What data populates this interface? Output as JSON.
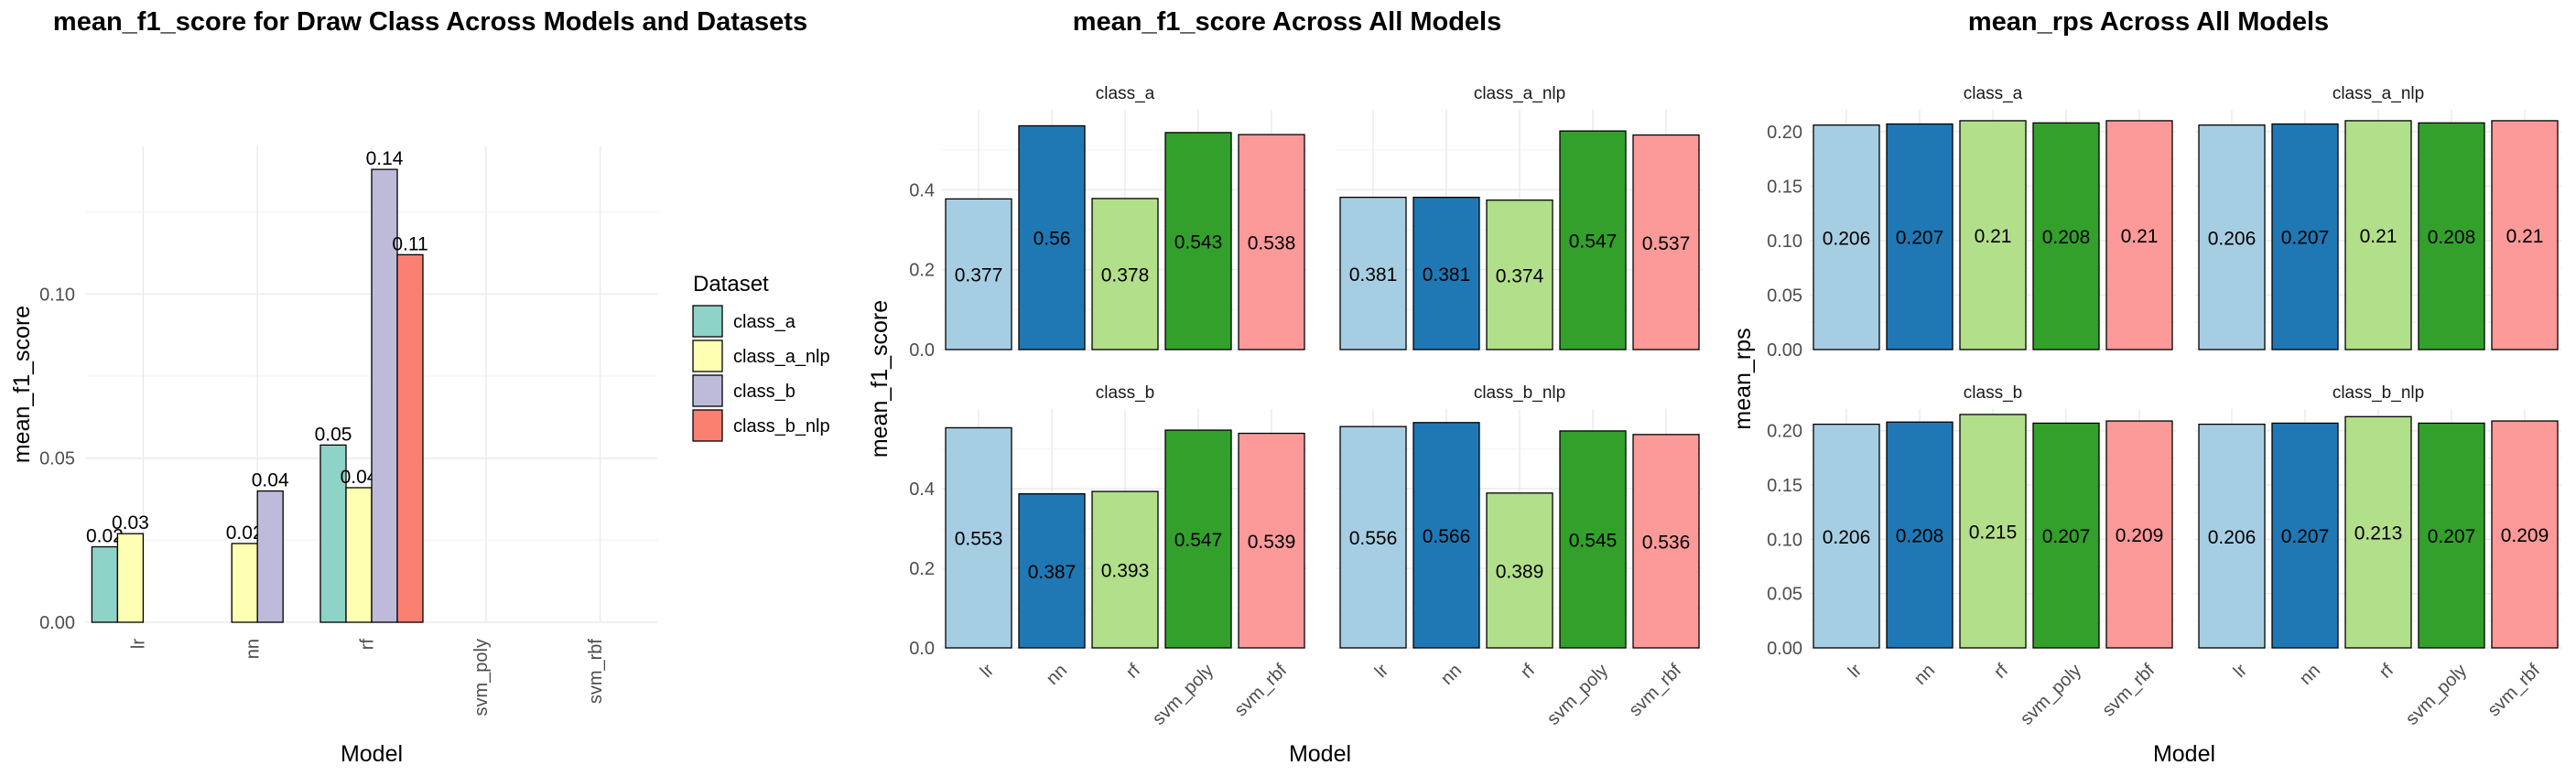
{
  "chart_data": [
    {
      "type": "bar",
      "title": "mean_f1_score for Draw Class Across Models and Datasets",
      "xlabel": "Model",
      "ylabel": "mean_f1_score",
      "categories": [
        "lr",
        "nn",
        "rf",
        "svm_poly",
        "svm_rbf"
      ],
      "yticks": [
        "0.00",
        "0.05",
        "0.10"
      ],
      "ylim": [
        0,
        0.145
      ],
      "legend_title": "Dataset",
      "legend_position": "right",
      "series": [
        {
          "name": "class_a",
          "color": "#8DD3C7",
          "values": [
            0.023,
            null,
            0.054,
            null,
            null
          ],
          "labels": [
            "0.02",
            null,
            "0.05",
            null,
            null
          ]
        },
        {
          "name": "class_a_nlp",
          "color": "#FFFFB3",
          "values": [
            0.027,
            0.024,
            0.041,
            null,
            null
          ],
          "labels": [
            "0.03",
            "0.02",
            "0.04",
            null,
            null
          ]
        },
        {
          "name": "class_b",
          "color": "#BEBADA",
          "values": [
            null,
            0.04,
            0.138,
            null,
            null
          ],
          "labels": [
            null,
            "0.04",
            "0.14",
            null,
            null
          ]
        },
        {
          "name": "class_b_nlp",
          "color": "#FB8072",
          "values": [
            null,
            null,
            0.112,
            null,
            null
          ],
          "labels": [
            null,
            null,
            "0.11",
            null,
            null
          ]
        }
      ]
    },
    {
      "type": "bar",
      "title": "mean_f1_score Across All Models",
      "xlabel": "Model",
      "ylabel": "mean_f1_score",
      "categories": [
        "lr",
        "nn",
        "rf",
        "svm_poly",
        "svm_rbf"
      ],
      "colors": [
        "#A6CEE3",
        "#1F78B4",
        "#B2DF8A",
        "#33A02C",
        "#FB9A99"
      ],
      "yticks": [
        "0.0",
        "0.2",
        "0.4"
      ],
      "ylim": [
        0,
        0.6
      ],
      "facets": [
        {
          "name": "class_a",
          "values": [
            0.377,
            0.56,
            0.378,
            0.543,
            0.538
          ],
          "labels": [
            "0.377",
            "0.56",
            "0.378",
            "0.543",
            "0.538"
          ]
        },
        {
          "name": "class_a_nlp",
          "values": [
            0.381,
            0.381,
            0.374,
            0.547,
            0.537
          ],
          "labels": [
            "0.381",
            "0.381",
            "0.374",
            "0.547",
            "0.537"
          ]
        },
        {
          "name": "class_b",
          "values": [
            0.553,
            0.387,
            0.393,
            0.547,
            0.539
          ],
          "labels": [
            "0.553",
            "0.387",
            "0.393",
            "0.547",
            "0.539"
          ]
        },
        {
          "name": "class_b_nlp",
          "values": [
            0.556,
            0.566,
            0.389,
            0.545,
            0.536
          ],
          "labels": [
            "0.556",
            "0.566",
            "0.389",
            "0.545",
            "0.536"
          ]
        }
      ]
    },
    {
      "type": "bar",
      "title": "mean_rps Across All Models",
      "xlabel": "Model",
      "ylabel": "mean_rps",
      "categories": [
        "lr",
        "nn",
        "rf",
        "svm_poly",
        "svm_rbf"
      ],
      "colors": [
        "#A6CEE3",
        "#1F78B4",
        "#B2DF8A",
        "#33A02C",
        "#FB9A99"
      ],
      "yticks": [
        "0.00",
        "0.05",
        "0.10",
        "0.15",
        "0.20"
      ],
      "ylim": [
        0,
        0.22
      ],
      "facets": [
        {
          "name": "class_a",
          "values": [
            0.206,
            0.207,
            0.21,
            0.208,
            0.21
          ],
          "labels": [
            "0.206",
            "0.207",
            "0.21",
            "0.208",
            "0.21"
          ]
        },
        {
          "name": "class_a_nlp",
          "values": [
            0.206,
            0.207,
            0.21,
            0.208,
            0.21
          ],
          "labels": [
            "0.206",
            "0.207",
            "0.21",
            "0.208",
            "0.21"
          ]
        },
        {
          "name": "class_b",
          "values": [
            0.206,
            0.208,
            0.215,
            0.207,
            0.209
          ],
          "labels": [
            "0.206",
            "0.208",
            "0.215",
            "0.207",
            "0.209"
          ]
        },
        {
          "name": "class_b_nlp",
          "values": [
            0.206,
            0.207,
            0.213,
            0.207,
            0.209
          ],
          "labels": [
            "0.206",
            "0.207",
            "0.213",
            "0.207",
            "0.209"
          ]
        }
      ]
    }
  ]
}
